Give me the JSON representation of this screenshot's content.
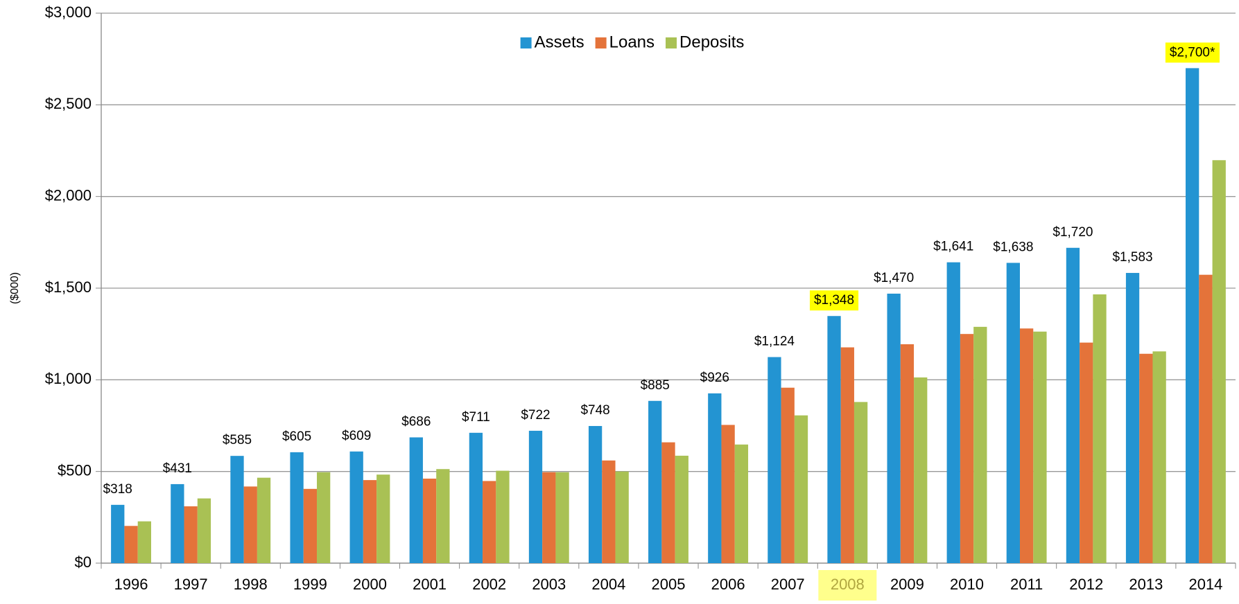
{
  "chart_data": {
    "type": "bar",
    "y_axis_label": "($000)",
    "categories": [
      "1996",
      "1997",
      "1998",
      "1999",
      "2000",
      "2001",
      "2002",
      "2003",
      "2004",
      "2005",
      "2006",
      "2007",
      "2008",
      "2009",
      "2010",
      "2011",
      "2012",
      "2013",
      "2014"
    ],
    "series": [
      {
        "name": "Assets",
        "color": "#2394d2",
        "values": [
          318,
          431,
          585,
          605,
          609,
          686,
          711,
          722,
          748,
          885,
          926,
          1124,
          1348,
          1470,
          1641,
          1638,
          1720,
          1583,
          2700
        ],
        "value_labels": [
          "$318",
          "$431",
          "$585",
          "$605",
          "$609",
          "$686",
          "$711",
          "$722",
          "$748",
          "$885",
          "$926",
          "$1,124",
          "$1,348",
          "$1,470",
          "$1,641",
          "$1,638",
          "$1,720",
          "$1,583",
          "$2,700*"
        ]
      },
      {
        "name": "Loans",
        "color": "#e4733a",
        "values": [
          203,
          310,
          418,
          405,
          453,
          461,
          448,
          496,
          560,
          659,
          754,
          957,
          1177,
          1194,
          1250,
          1280,
          1203,
          1142,
          1573
        ]
      },
      {
        "name": "Deposits",
        "color": "#a9c154",
        "values": [
          228,
          353,
          466,
          496,
          483,
          513,
          504,
          496,
          500,
          586,
          647,
          806,
          879,
          1013,
          1289,
          1263,
          1466,
          1155,
          2198
        ]
      }
    ],
    "ylim": [
      0,
      3000
    ],
    "yticks": [
      {
        "value": 0,
        "label": "$0"
      },
      {
        "value": 500,
        "label": "$500"
      },
      {
        "value": 1000,
        "label": "$1,000"
      },
      {
        "value": 1500,
        "label": "$1,500"
      },
      {
        "value": 2000,
        "label": "$2,000"
      },
      {
        "value": 2500,
        "label": "$2,500"
      },
      {
        "value": 3000,
        "label": "$3,000"
      }
    ],
    "grid": true,
    "legend": "top",
    "highlight_color": "#ffff00",
    "highlight_categories": [
      "2008"
    ],
    "highlight_value_labels": [
      "2008",
      "2014"
    ]
  }
}
